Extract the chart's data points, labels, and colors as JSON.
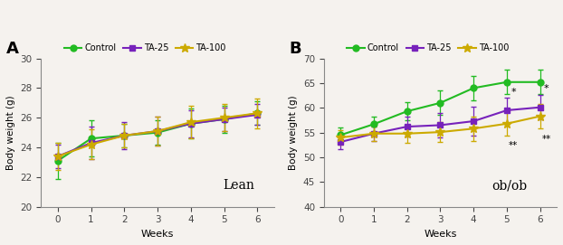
{
  "weeks": [
    0,
    1,
    2,
    3,
    4,
    5,
    6
  ],
  "lean_control_mean": [
    23.1,
    24.6,
    24.8,
    25.0,
    25.6,
    25.9,
    26.3
  ],
  "lean_control_err": [
    1.2,
    1.2,
    0.8,
    0.8,
    1.0,
    0.9,
    0.8
  ],
  "lean_ta25_mean": [
    23.4,
    24.3,
    24.8,
    25.1,
    25.6,
    25.9,
    26.2
  ],
  "lean_ta25_err": [
    0.8,
    1.1,
    0.9,
    1.0,
    0.9,
    0.8,
    0.7
  ],
  "lean_ta100_mean": [
    23.4,
    24.2,
    24.8,
    25.1,
    25.7,
    26.0,
    26.3
  ],
  "lean_ta100_err": [
    0.9,
    1.0,
    0.8,
    1.0,
    1.1,
    0.9,
    1.0
  ],
  "ob_control_mean": [
    54.5,
    56.7,
    59.3,
    61.0,
    64.0,
    65.2,
    65.2
  ],
  "ob_control_err": [
    1.5,
    1.5,
    1.8,
    2.5,
    2.5,
    2.5,
    2.5
  ],
  "ob_ta25_mean": [
    53.1,
    54.8,
    56.2,
    56.5,
    57.3,
    59.5,
    60.1
  ],
  "ob_ta25_err": [
    1.5,
    1.5,
    2.0,
    2.5,
    3.0,
    2.5,
    2.5
  ],
  "ob_ta100_mean": [
    54.0,
    54.8,
    54.8,
    55.1,
    55.8,
    56.8,
    58.3
  ],
  "ob_ta100_err": [
    1.5,
    1.5,
    1.8,
    2.0,
    2.5,
    2.5,
    2.5
  ],
  "color_control": "#22bb22",
  "color_ta25": "#7722bb",
  "color_ta100": "#ccaa00",
  "bg_color": "#f5f2ee",
  "lean_ylim": [
    20,
    30
  ],
  "lean_yticks": [
    20,
    22,
    24,
    26,
    28,
    30
  ],
  "ob_ylim": [
    40,
    70
  ],
  "ob_yticks": [
    40,
    45,
    50,
    55,
    60,
    65,
    70
  ],
  "lean_label": "Lean",
  "ob_label": "ob/ob",
  "xlabel": "Weeks",
  "ylabel": "Body weight (g)",
  "panel_a": "A",
  "panel_b": "B",
  "legend_labels": [
    "Control",
    "TA-25",
    "TA-100"
  ]
}
